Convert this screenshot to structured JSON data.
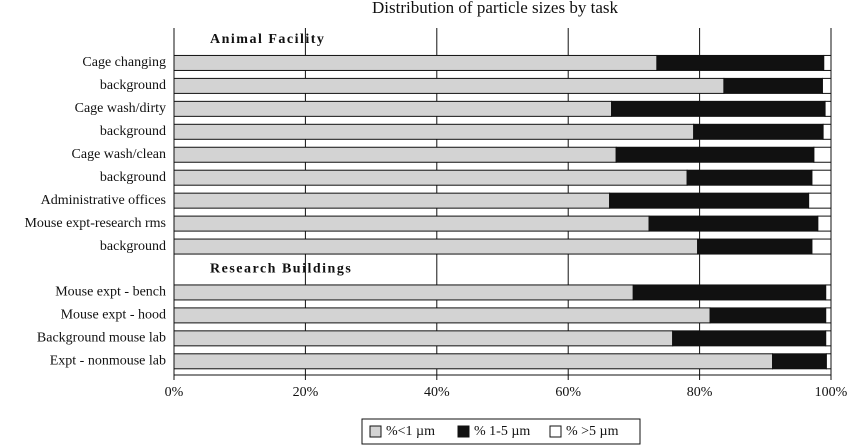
{
  "chart_data": {
    "type": "stacked_barh",
    "title": "Distribution of particle sizes by task",
    "groups": [
      {
        "name": "Animal Facility",
        "categories": [
          "Cage changing",
          "background",
          "Cage wash/dirty",
          "background",
          "Cage wash/clean",
          "background",
          "Administrative offices",
          "Mouse  expt-research rms",
          "background"
        ]
      },
      {
        "name": "Research Buildings",
        "categories": [
          "Mouse expt - bench",
          "Mouse  expt - hood",
          "Background mouse lab",
          "Expt - nonmouse lab"
        ]
      }
    ],
    "series": [
      {
        "name": "%<1  µm",
        "color": "#d3d3d3",
        "values": [
          73.5,
          83.7,
          66.6,
          79.1,
          67.3,
          78.1,
          66.3,
          72.3,
          79.7,
          69.9,
          81.6,
          75.9,
          91.1
        ]
      },
      {
        "name": "%  1-5  µm",
        "color": "#111111",
        "values": [
          25.4,
          15.0,
          32.5,
          19.7,
          30.1,
          19.0,
          30.3,
          25.7,
          17.4,
          29.3,
          17.6,
          23.3,
          8.2
        ]
      },
      {
        "name": "%  >5  µm",
        "color": "#ffffff",
        "values": [
          1.1,
          1.3,
          0.9,
          1.2,
          2.6,
          2.9,
          3.4,
          2.0,
          2.9,
          0.8,
          0.8,
          0.8,
          0.7
        ]
      }
    ],
    "xlim": [
      0,
      100
    ],
    "xticks": [
      {
        "value": 0,
        "label": "0%"
      },
      {
        "value": 20,
        "label": "20%"
      },
      {
        "value": 40,
        "label": "40%"
      },
      {
        "value": 60,
        "label": "60%"
      },
      {
        "value": 80,
        "label": "80%"
      },
      {
        "value": 100,
        "label": "100%"
      }
    ],
    "grid": true,
    "legend": "bottom"
  }
}
